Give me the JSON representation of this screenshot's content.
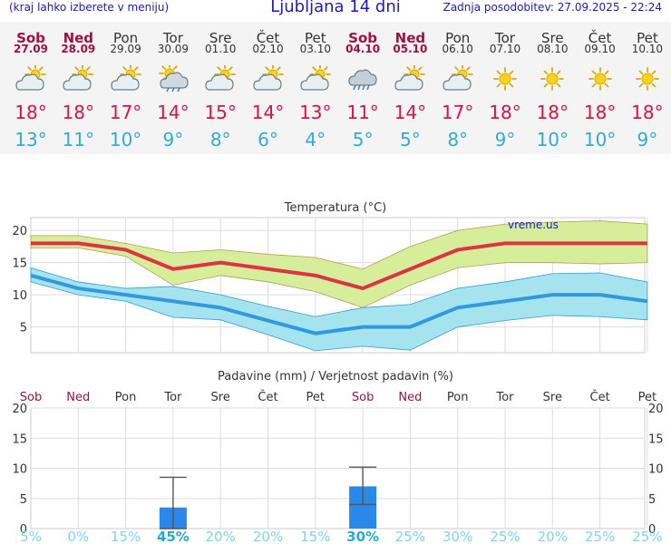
{
  "header": {
    "left_note": "(kraj lahko izberete v meniju)",
    "title": "Ljubljana 14 dni",
    "last_update": "Zadnja posodobitev: 27.09.2025 - 22:24"
  },
  "days": [
    {
      "name": "Sob",
      "date": "27.09",
      "weekend": true,
      "icon": "cloud-sun-icon",
      "tmax": "18°",
      "tmin": "13°"
    },
    {
      "name": "Ned",
      "date": "28.09",
      "weekend": true,
      "icon": "cloud-sun-icon",
      "tmax": "18°",
      "tmin": "11°"
    },
    {
      "name": "Pon",
      "date": "29.09",
      "weekend": false,
      "icon": "cloud-sun-icon",
      "tmax": "17°",
      "tmin": "10°"
    },
    {
      "name": "Tor",
      "date": "30.09",
      "weekend": false,
      "icon": "sun-rain-icon",
      "tmax": "14°",
      "tmin": "9°"
    },
    {
      "name": "Sre",
      "date": "01.10",
      "weekend": false,
      "icon": "cloud-sun-icon",
      "tmax": "15°",
      "tmin": "8°"
    },
    {
      "name": "Čet",
      "date": "02.10",
      "weekend": false,
      "icon": "cloud-sun-icon",
      "tmax": "14°",
      "tmin": "6°"
    },
    {
      "name": "Pet",
      "date": "03.10",
      "weekend": false,
      "icon": "cloud-sun-icon",
      "tmax": "13°",
      "tmin": "4°"
    },
    {
      "name": "Sob",
      "date": "04.10",
      "weekend": true,
      "icon": "cloud-rain-icon",
      "tmax": "11°",
      "tmin": "5°"
    },
    {
      "name": "Ned",
      "date": "05.10",
      "weekend": true,
      "icon": "cloud-sun-icon",
      "tmax": "14°",
      "tmin": "5°"
    },
    {
      "name": "Pon",
      "date": "06.10",
      "weekend": false,
      "icon": "cloud-sun-icon",
      "tmax": "17°",
      "tmin": "8°"
    },
    {
      "name": "Tor",
      "date": "07.10",
      "weekend": false,
      "icon": "sun-icon",
      "tmax": "18°",
      "tmin": "9°"
    },
    {
      "name": "Sre",
      "date": "08.10",
      "weekend": false,
      "icon": "sun-icon",
      "tmax": "18°",
      "tmin": "10°"
    },
    {
      "name": "Čet",
      "date": "09.10",
      "weekend": false,
      "icon": "sun-icon",
      "tmax": "18°",
      "tmin": "10°"
    },
    {
      "name": "Pet",
      "date": "10.10",
      "weekend": false,
      "icon": "sun-icon",
      "tmax": "18°",
      "tmin": "9°"
    }
  ],
  "colors": {
    "accent": "#1a1acc",
    "weekend": "#a01040",
    "tmax": "#dd1144",
    "tmin": "#33aadd",
    "max_band": "#d6ee9a",
    "min_band": "#a5e3ee",
    "max_line": "#dd3344",
    "min_line": "#3399dd",
    "bar": "#2a88e8",
    "prob": "#66ccee"
  },
  "chart_data": [
    {
      "type": "line",
      "title": "Temperatura (°C)",
      "watermark": "vreme.us",
      "x": [
        "Sob",
        "Ned",
        "Pon",
        "Tor",
        "Sre",
        "Čet",
        "Pet",
        "Sob",
        "Ned",
        "Pon",
        "Tor",
        "Sre",
        "Čet",
        "Pet"
      ],
      "ylim": [
        1,
        22
      ],
      "yticks": [
        5,
        10,
        15,
        20
      ],
      "grid": true,
      "series": [
        {
          "values": [
            18,
            18,
            17,
            14,
            15,
            14,
            13,
            11,
            14,
            17,
            18,
            18,
            18,
            18
          ],
          "band_low": [
            17.3,
            17.3,
            16,
            11.5,
            13,
            12,
            10.5,
            8,
            11.5,
            14.2,
            15,
            15,
            14.8,
            15
          ],
          "band_high": [
            19.2,
            19.2,
            18,
            16.5,
            17,
            16.3,
            15.8,
            14,
            17.5,
            20,
            21,
            21.3,
            21.5,
            21
          ]
        },
        {
          "values": [
            13,
            11,
            10,
            9,
            8,
            6,
            4,
            5,
            5,
            8,
            9,
            10,
            10,
            9
          ],
          "band_low": [
            12,
            10,
            9,
            6.5,
            6.1,
            3.8,
            1.3,
            2,
            1.4,
            5,
            6,
            6.8,
            6.6,
            6.1
          ],
          "band_high": [
            14.2,
            12,
            11,
            11.3,
            10,
            8.2,
            6.6,
            8,
            8.5,
            11,
            12,
            13.3,
            13.4,
            12
          ]
        }
      ]
    },
    {
      "type": "bar",
      "title": "Padavine (mm) / Verjetnost padavin (%)",
      "categories": [
        "Sob",
        "Ned",
        "Pon",
        "Tor",
        "Sre",
        "Čet",
        "Pet",
        "Sob",
        "Ned",
        "Pon",
        "Tor",
        "Sre",
        "Čet",
        "Pet"
      ],
      "weekend": [
        true,
        true,
        false,
        false,
        false,
        false,
        false,
        true,
        true,
        false,
        false,
        false,
        false,
        false
      ],
      "values": [
        0,
        0,
        0,
        3.5,
        0,
        0,
        0,
        7,
        0,
        0,
        0,
        0,
        0,
        0
      ],
      "error_high": [
        null,
        null,
        null,
        8.5,
        null,
        null,
        null,
        10.2,
        null,
        null,
        null,
        null,
        null,
        null
      ],
      "error_low": [
        null,
        null,
        null,
        0,
        null,
        null,
        null,
        4,
        null,
        null,
        null,
        null,
        null,
        null
      ],
      "probability": [
        "5%",
        "0%",
        "15%",
        "45%",
        "20%",
        "20%",
        "15%",
        "30%",
        "25%",
        "30%",
        "25%",
        "20%",
        "25%",
        "25%"
      ],
      "probability_bold": [
        false,
        false,
        false,
        true,
        false,
        false,
        false,
        true,
        false,
        false,
        false,
        false,
        false,
        false
      ],
      "ylim": [
        0,
        20
      ],
      "yticks": [
        0,
        5,
        10,
        15,
        20
      ],
      "grid": true
    }
  ]
}
